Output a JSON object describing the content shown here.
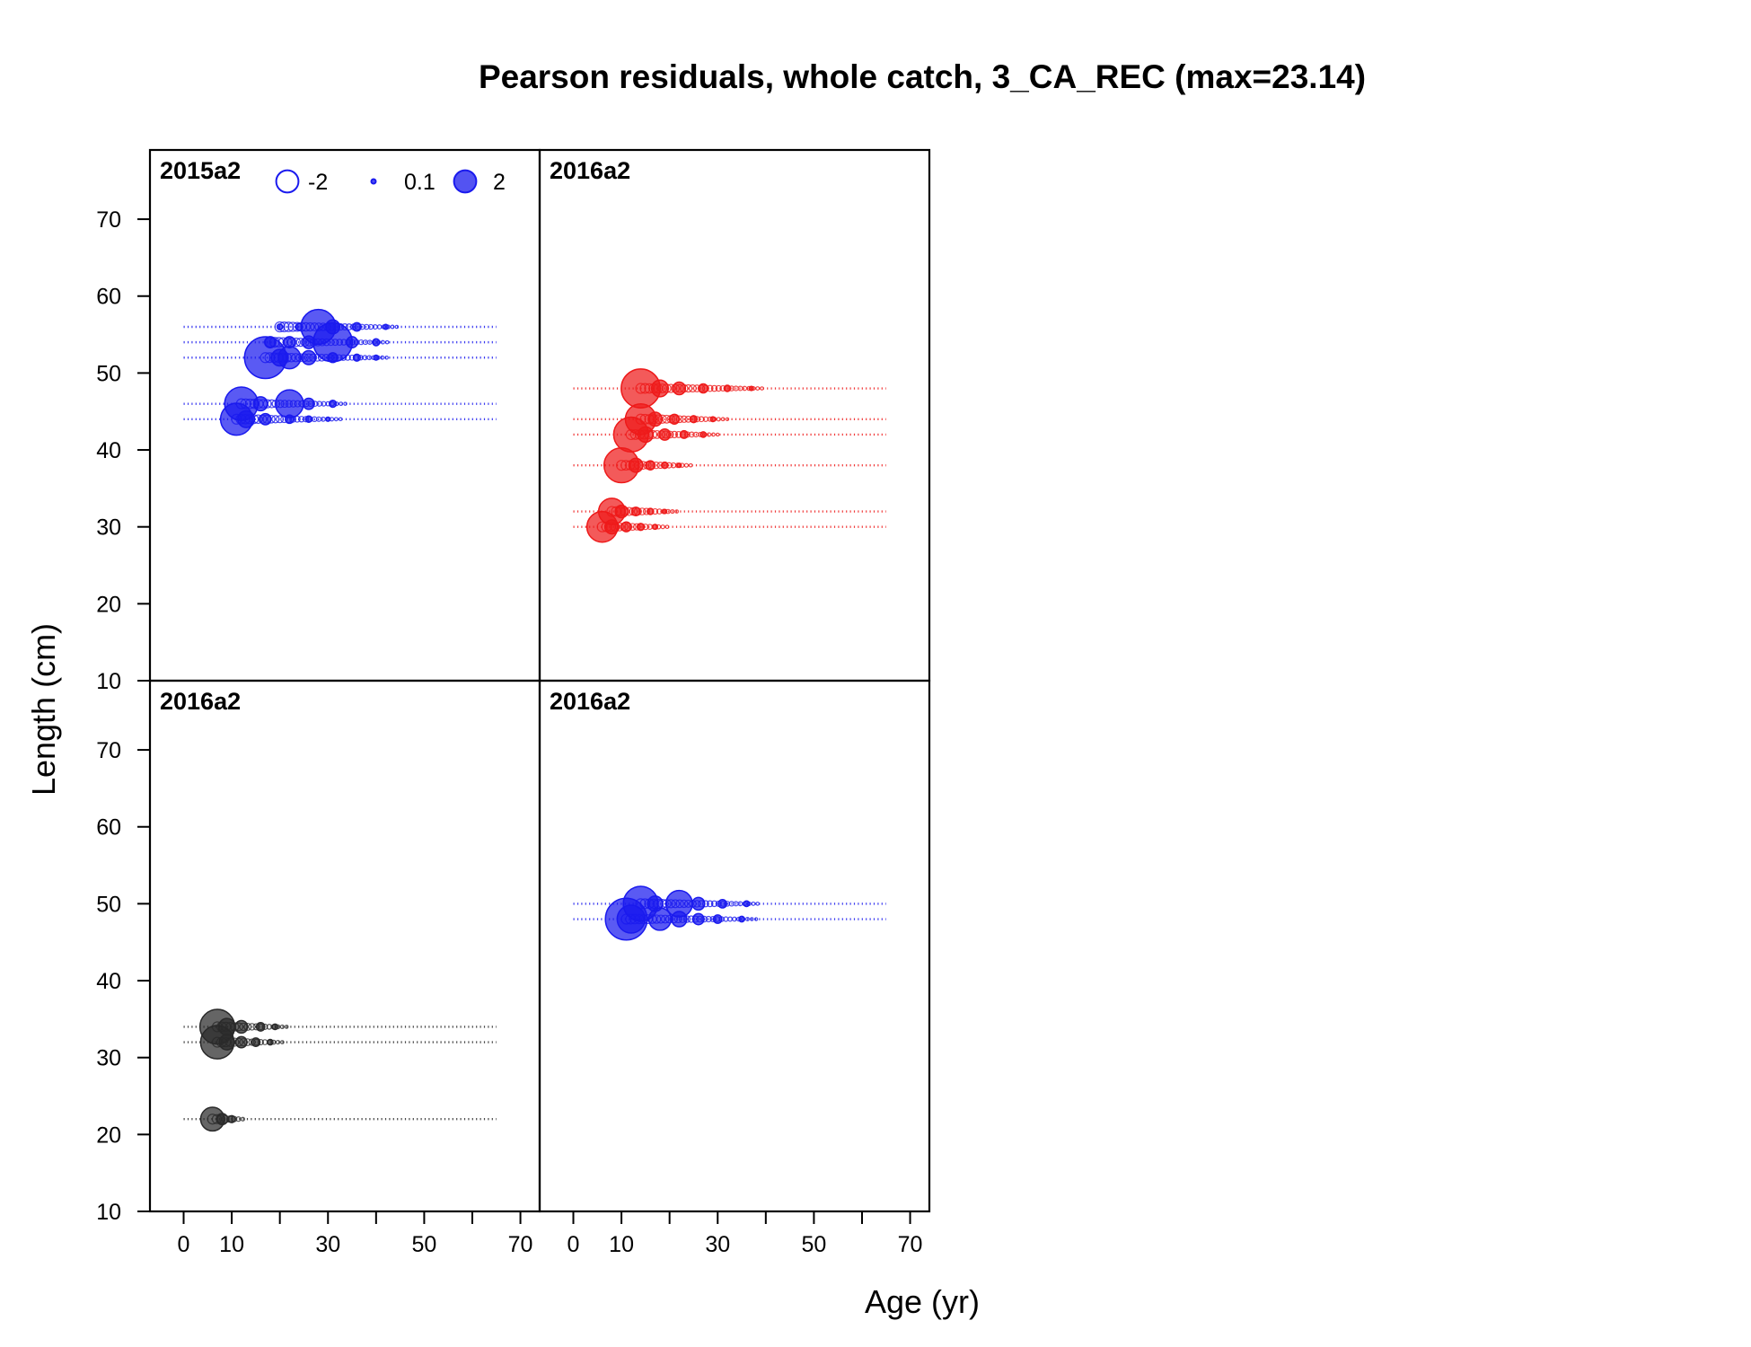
{
  "chart_data": {
    "type": "scatter",
    "subtype": "bubble-residuals",
    "title": "Pearson residuals, whole catch, 3_CA_REC (max=23.14)",
    "xlabel": "Age (yr)",
    "ylabel": "Length (cm)",
    "xlim": [
      -7,
      74
    ],
    "ylim": [
      10,
      79
    ],
    "xticks": [
      0,
      10,
      20,
      30,
      40,
      50,
      60,
      70
    ],
    "xtick_labels": [
      "0",
      "10",
      "30",
      "50",
      "70"
    ],
    "xtick_label_values": [
      0,
      10,
      30,
      50,
      70
    ],
    "yticks": [
      10,
      20,
      30,
      40,
      50,
      60,
      70
    ],
    "ytick_labels": [
      "10",
      "20",
      "30",
      "40",
      "50",
      "60",
      "70"
    ],
    "grid": false,
    "legend": {
      "position": "top-left of first panel",
      "entries": [
        {
          "label": "-2",
          "value": -2,
          "style": "open"
        },
        {
          "label": "0.1",
          "value": 0.1,
          "style": "filled"
        },
        {
          "label": "2",
          "value": 2,
          "style": "filled"
        }
      ]
    },
    "age_range": [
      0,
      65
    ],
    "panels": [
      {
        "label": "2015a2",
        "color": "#1a1aee",
        "rows": [
          {
            "length": 44,
            "bubbles": [
              {
                "age": 11,
                "r": 2.3
              },
              {
                "age": 13,
                "r": 1.2
              },
              {
                "age": 17,
                "r": 0.8
              },
              {
                "age": 22,
                "r": 0.6
              },
              {
                "age": 26,
                "r": 0.45
              },
              {
                "age": 30,
                "r": 0.3
              }
            ]
          },
          {
            "length": 46,
            "bubbles": [
              {
                "age": 12,
                "r": 2.4
              },
              {
                "age": 16,
                "r": 1.0
              },
              {
                "age": 22,
                "r": 2.0
              },
              {
                "age": 26,
                "r": 0.8
              },
              {
                "age": 31,
                "r": 0.5
              }
            ]
          },
          {
            "length": 52,
            "bubbles": [
              {
                "age": 17,
                "r": 3.0
              },
              {
                "age": 20,
                "r": 1.2
              },
              {
                "age": 22,
                "r": 1.6
              },
              {
                "age": 26,
                "r": 1.0
              },
              {
                "age": 31,
                "r": 0.7
              },
              {
                "age": 36,
                "r": 0.5
              },
              {
                "age": 40,
                "r": 0.35
              }
            ]
          },
          {
            "length": 54,
            "bubbles": [
              {
                "age": 18,
                "r": 0.8
              },
              {
                "age": 22,
                "r": 0.8
              },
              {
                "age": 26,
                "r": 0.9
              },
              {
                "age": 31,
                "r": 2.8
              },
              {
                "age": 35,
                "r": 0.8
              },
              {
                "age": 40,
                "r": 0.5
              }
            ]
          },
          {
            "length": 56,
            "bubbles": [
              {
                "age": 20,
                "r": 0.4
              },
              {
                "age": 24,
                "r": 0.5
              },
              {
                "age": 28,
                "r": 2.5
              },
              {
                "age": 31,
                "r": 1.0
              },
              {
                "age": 36,
                "r": 0.6
              },
              {
                "age": 42,
                "r": 0.35
              }
            ]
          }
        ]
      },
      {
        "label": "2016a2",
        "color": "#ee1a1a",
        "rows": [
          {
            "length": 30,
            "bubbles": [
              {
                "age": 6,
                "r": 2.2
              },
              {
                "age": 8,
                "r": 1.0
              },
              {
                "age": 11,
                "r": 0.7
              },
              {
                "age": 14,
                "r": 0.5
              },
              {
                "age": 17,
                "r": 0.35
              }
            ]
          },
          {
            "length": 32,
            "bubbles": [
              {
                "age": 8,
                "r": 1.9
              },
              {
                "age": 10,
                "r": 0.9
              },
              {
                "age": 13,
                "r": 0.6
              },
              {
                "age": 16,
                "r": 0.45
              },
              {
                "age": 19,
                "r": 0.3
              }
            ]
          },
          {
            "length": 38,
            "bubbles": [
              {
                "age": 10,
                "r": 2.5
              },
              {
                "age": 13,
                "r": 1.0
              },
              {
                "age": 16,
                "r": 0.65
              },
              {
                "age": 19,
                "r": 0.45
              },
              {
                "age": 22,
                "r": 0.3
              }
            ]
          },
          {
            "length": 42,
            "bubbles": [
              {
                "age": 12,
                "r": 2.5
              },
              {
                "age": 15,
                "r": 1.1
              },
              {
                "age": 19,
                "r": 0.8
              },
              {
                "age": 23,
                "r": 0.55
              },
              {
                "age": 27,
                "r": 0.4
              }
            ]
          },
          {
            "length": 44,
            "bubbles": [
              {
                "age": 14,
                "r": 2.2
              },
              {
                "age": 17,
                "r": 1.0
              },
              {
                "age": 21,
                "r": 0.7
              },
              {
                "age": 25,
                "r": 0.5
              },
              {
                "age": 29,
                "r": 0.35
              }
            ]
          },
          {
            "length": 48,
            "bubbles": [
              {
                "age": 14,
                "r": 2.8
              },
              {
                "age": 18,
                "r": 1.2
              },
              {
                "age": 22,
                "r": 0.9
              },
              {
                "age": 27,
                "r": 0.65
              },
              {
                "age": 32,
                "r": 0.45
              },
              {
                "age": 37,
                "r": 0.3
              }
            ]
          }
        ]
      },
      {
        "label": "2016a2",
        "color": "#2a2a2a",
        "rows": [
          {
            "length": 22,
            "bubbles": [
              {
                "age": 6,
                "r": 1.7
              },
              {
                "age": 8,
                "r": 0.8
              },
              {
                "age": 10,
                "r": 0.5
              }
            ]
          },
          {
            "length": 32,
            "bubbles": [
              {
                "age": 7,
                "r": 2.4
              },
              {
                "age": 9,
                "r": 1.1
              },
              {
                "age": 12,
                "r": 0.8
              },
              {
                "age": 15,
                "r": 0.6
              },
              {
                "age": 18,
                "r": 0.4
              }
            ]
          },
          {
            "length": 34,
            "bubbles": [
              {
                "age": 7,
                "r": 2.5
              },
              {
                "age": 9,
                "r": 1.2
              },
              {
                "age": 12,
                "r": 0.9
              },
              {
                "age": 16,
                "r": 0.6
              },
              {
                "age": 19,
                "r": 0.4
              }
            ]
          }
        ]
      },
      {
        "label": "2016a2",
        "color": "#1a1aee",
        "rows": [
          {
            "length": 48,
            "bubbles": [
              {
                "age": 11,
                "r": 3.0
              },
              {
                "age": 12,
                "r": 2.0
              },
              {
                "age": 18,
                "r": 1.6
              },
              {
                "age": 22,
                "r": 1.1
              },
              {
                "age": 26,
                "r": 0.8
              },
              {
                "age": 30,
                "r": 0.6
              },
              {
                "age": 35,
                "r": 0.4
              }
            ]
          },
          {
            "length": 50,
            "bubbles": [
              {
                "age": 14,
                "r": 2.5
              },
              {
                "age": 17,
                "r": 1.1
              },
              {
                "age": 22,
                "r": 1.9
              },
              {
                "age": 26,
                "r": 0.9
              },
              {
                "age": 31,
                "r": 0.6
              },
              {
                "age": 36,
                "r": 0.4
              }
            ]
          }
        ]
      }
    ]
  }
}
